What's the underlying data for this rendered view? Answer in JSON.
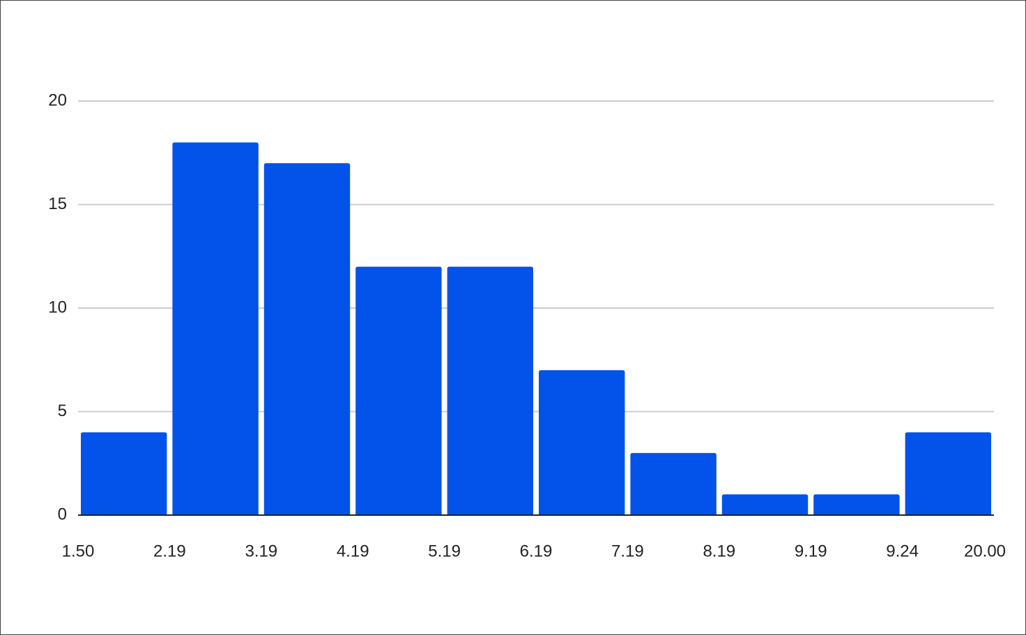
{
  "chart_data": {
    "type": "histogram",
    "bins": [
      "1.50",
      "2.19",
      "3.19",
      "4.19",
      "5.19",
      "6.19",
      "7.19",
      "8.19",
      "9.19",
      "9.24",
      "20.00"
    ],
    "values": [
      4,
      18,
      17,
      12,
      12,
      7,
      3,
      1,
      1,
      4
    ],
    "color": "#0352e9",
    "ylim": [
      0,
      20
    ],
    "yticks": [
      0,
      5,
      10,
      15,
      20
    ],
    "grid": true
  }
}
